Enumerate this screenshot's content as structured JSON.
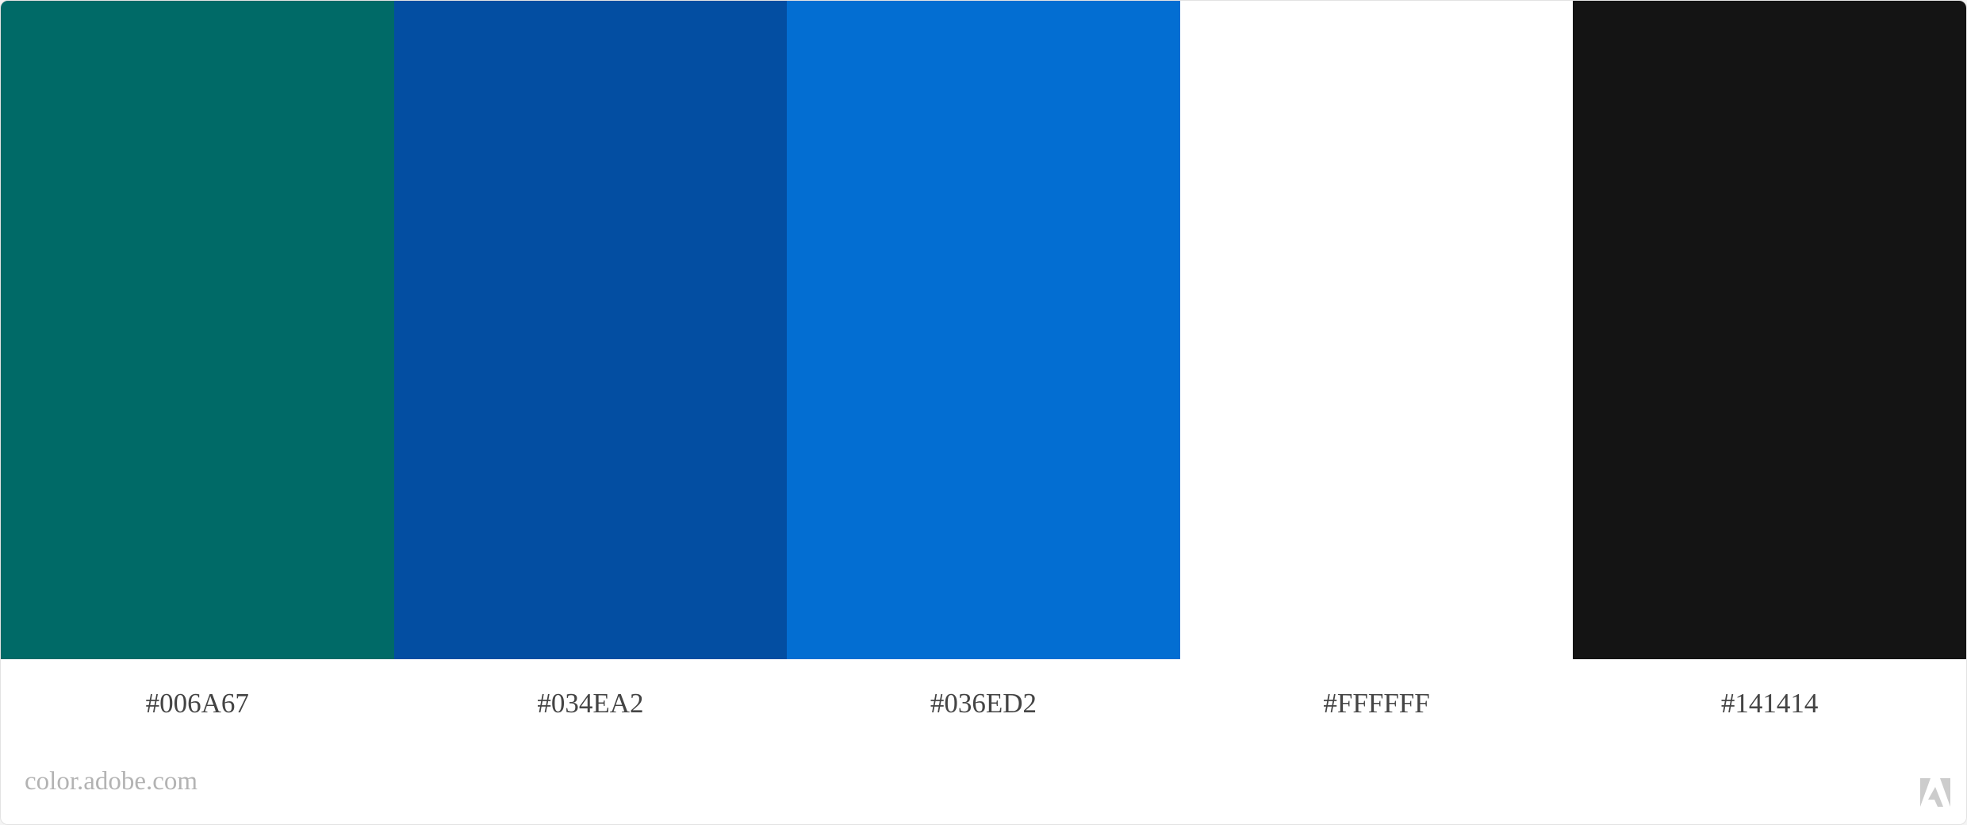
{
  "palette": {
    "swatches": [
      {
        "hex": "#006A67",
        "label": "#006A67"
      },
      {
        "hex": "#034EA2",
        "label": "#034EA2"
      },
      {
        "hex": "#036ED2",
        "label": "#036ED2"
      },
      {
        "hex": "#FFFFFF",
        "label": "#FFFFFF"
      },
      {
        "hex": "#141414",
        "label": "#141414"
      }
    ]
  },
  "footer": {
    "site": "color.adobe.com",
    "logo_icon": "adobe-logo-icon",
    "logo_color": "#cccccc"
  }
}
